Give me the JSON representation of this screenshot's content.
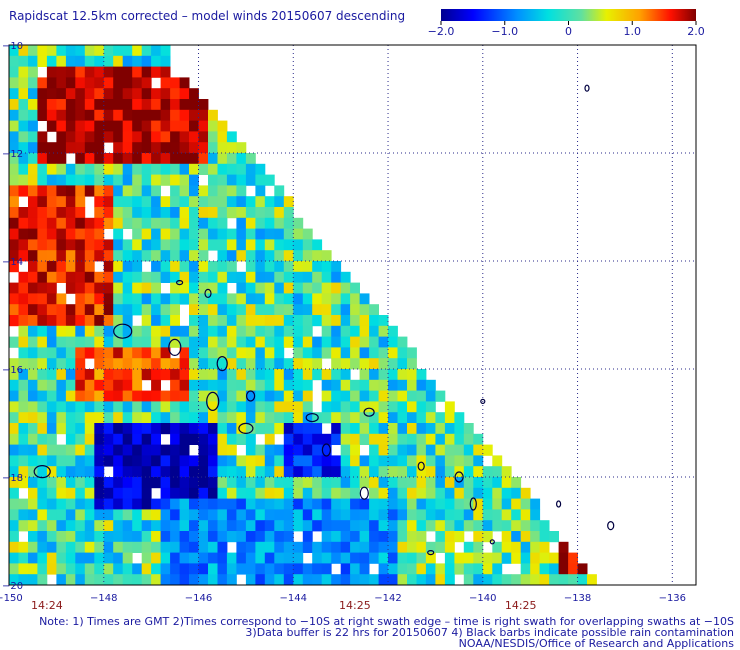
{
  "chart_data": {
    "type": "heatmap",
    "title": "Rapidscat 12.5km corrected – model winds 20150607 descending",
    "x_range": [
      -150,
      -135.5
    ],
    "y_range": [
      -20,
      -10
    ],
    "x_ticks": [
      "−150",
      "−148",
      "−146",
      "−144",
      "−142",
      "−140",
      "−138",
      "−136"
    ],
    "y_ticks": [
      "−10",
      "−12",
      "−14",
      "−16",
      "−18",
      "−20"
    ],
    "grid": true,
    "colorbar": {
      "range": [
        -2.0,
        2.0
      ],
      "ticks": [
        "−2.0",
        "−1.0",
        "0",
        "1.0",
        "2.0"
      ],
      "placement": "top-right"
    },
    "time_labels": [
      {
        "text": "14:24",
        "lon": -149.2
      },
      {
        "text": "14:25",
        "lon": -142.7
      },
      {
        "text": "14:25",
        "lon": -139.2
      }
    ],
    "swath": {
      "left_edge_lon": -150,
      "right_edge_top": {
        "lon": -146.8,
        "lat": -10
      },
      "right_edge_bottom": {
        "lon": -137.5,
        "lat": -20
      }
    },
    "regions": [
      {
        "name": "strong positive NW",
        "lon": [
          -149.5,
          -146.0
        ],
        "lat": [
          -10.3,
          -12.0
        ],
        "value": 1.9
      },
      {
        "name": "positive west",
        "lon": [
          -150,
          -148.0
        ],
        "lat": [
          -12.5,
          -15.0
        ],
        "value": 1.6
      },
      {
        "name": "positive band",
        "lon": [
          -148.7,
          -146.3
        ],
        "lat": [
          -15.4,
          -16.4
        ],
        "value": 1.4
      },
      {
        "name": "strong negative",
        "lon": [
          -148.3,
          -145.8
        ],
        "lat": [
          -16.8,
          -18.5
        ],
        "value": -1.8
      },
      {
        "name": "negative south",
        "lon": [
          -147.0,
          -142.0
        ],
        "lat": [
          -18.3,
          -20.0
        ],
        "value": -0.8
      },
      {
        "name": "negative center",
        "lon": [
          -144.3,
          -143.2
        ],
        "lat": [
          -16.8,
          -17.8
        ],
        "value": -1.4
      },
      {
        "name": "strong positive SE",
        "lon": [
          -138.5,
          -137.6
        ],
        "lat": [
          -18.9,
          -19.6
        ],
        "value": 1.9
      }
    ],
    "notes": [
      "Note: 1) Times are GMT 2)Times correspond to −10S at right swath edge – time is right swath for overlapping swaths at −10S",
      "3)Data buffer is 22 hrs for 20150607 4) Black barbs indicate possible rain contamination",
      "NOAA/NESDIS/Office of Research and Applications"
    ]
  }
}
